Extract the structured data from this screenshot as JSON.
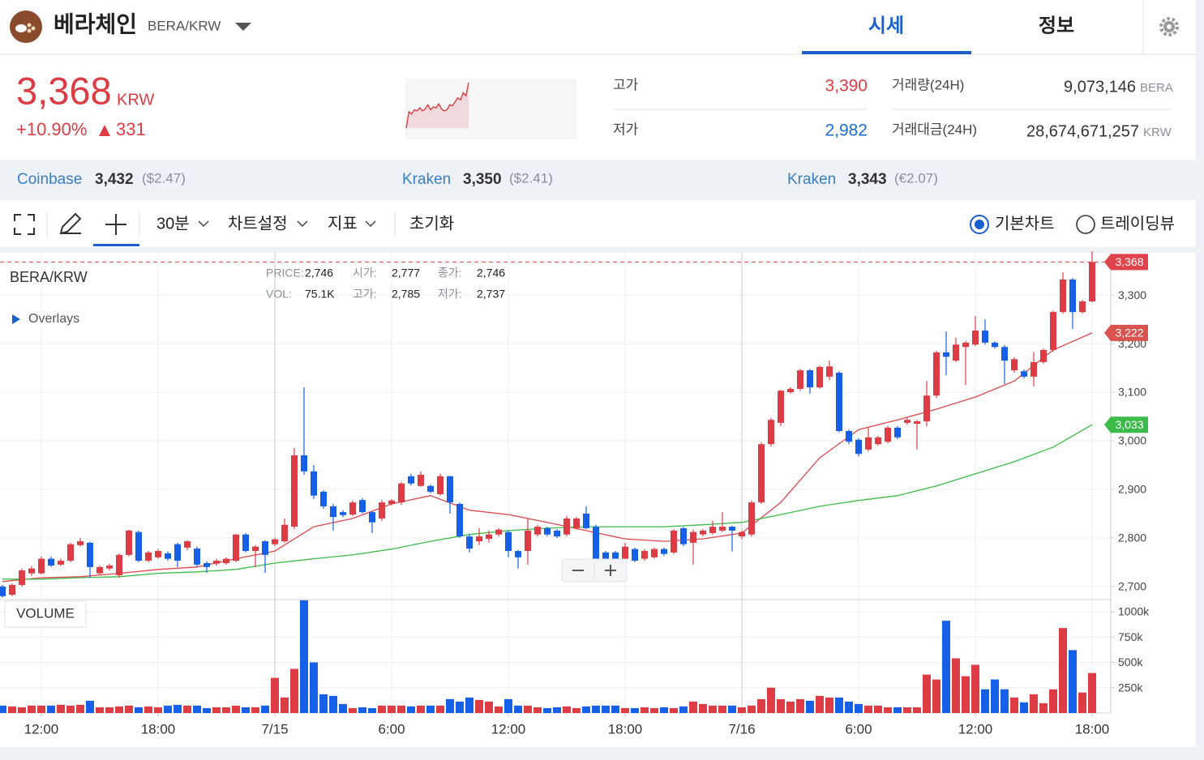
{
  "header": {
    "name": "베라체인",
    "pair": "BERA/KRW",
    "tabs": [
      "시세",
      "정보"
    ]
  },
  "ticker": {
    "price": "3,368",
    "currency": "KRW",
    "change_rate": "+10.90%",
    "change": "331",
    "sparkline": {
      "color": "#dd3c44",
      "values": [
        2700,
        2860,
        2840,
        2880,
        2870,
        2900,
        2870,
        2890,
        2930,
        2880,
        2910,
        2900,
        2940,
        2890,
        2870,
        2880,
        2930,
        2920,
        2960,
        3000,
        2980,
        3050,
        3020,
        3150
      ]
    }
  },
  "stats": [
    {
      "label": "고가",
      "value": "3,390"
    },
    {
      "label": "저가",
      "value": "2,982"
    },
    {
      "label": "거래량(24H)",
      "value": "9,073,146",
      "unit": "BERA"
    },
    {
      "label": "거래대금(24H)",
      "value": "28,674,671,257",
      "unit": "KRW"
    }
  ],
  "exchanges": [
    {
      "name": "Coinbase",
      "price": "3,432",
      "quote": "($2.47)"
    },
    {
      "name": "Kraken",
      "price": "3,350",
      "quote": "($2.41)"
    },
    {
      "name": "Kraken",
      "price": "3,343",
      "quote": "(€2.07)"
    }
  ],
  "toolbar": {
    "interval": "30분",
    "settings": "차트설정",
    "indicators": "지표",
    "reset": "초기화",
    "modes": [
      "기본차트",
      "트레이딩뷰"
    ]
  },
  "chart_data": {
    "type": "candlestick",
    "title": "BERA/KRW",
    "info": [
      [
        "PRICE:",
        "2,746"
      ],
      [
        "시가:",
        "2,777"
      ],
      [
        "종가:",
        "2,746"
      ],
      [
        "VOL:",
        "75.1K"
      ],
      [
        "고가:",
        "2,785"
      ],
      [
        "저가:",
        "2,737"
      ]
    ],
    "overlays_label": "Overlays",
    "volume_label": "VOLUME",
    "up_color": "#dd3c44",
    "down_color": "#1560e6",
    "grid": true,
    "x": [
      "7/14 10:00",
      "7/14 10:30",
      "7/14 11:00",
      "7/14 11:30",
      "7/14 12:00",
      "7/14 12:30",
      "7/14 13:00",
      "7/14 13:30",
      "7/14 14:00",
      "7/14 14:30",
      "7/14 15:00",
      "7/14 15:30",
      "7/14 16:00",
      "7/14 16:30",
      "7/14 17:00",
      "7/14 17:30",
      "7/14 18:00",
      "7/14 18:30",
      "7/14 19:00",
      "7/14 19:30",
      "7/14 20:00",
      "7/14 20:30",
      "7/14 21:00",
      "7/14 21:30",
      "7/14 22:00",
      "7/14 22:30",
      "7/14 23:00",
      "7/14 23:30",
      "7/15 0:00",
      "7/15 0:30",
      "7/15 1:00",
      "7/15 1:30",
      "7/15 2:00",
      "7/15 2:30",
      "7/15 3:00",
      "7/15 3:30",
      "7/15 4:00",
      "7/15 4:30",
      "7/15 5:00",
      "7/15 5:30",
      "7/15 6:00",
      "7/15 6:30",
      "7/15 7:00",
      "7/15 7:30",
      "7/15 8:00",
      "7/15 8:30",
      "7/15 9:00",
      "7/15 9:30",
      "7/15 10:00",
      "7/15 10:30",
      "7/15 11:00",
      "7/15 11:30",
      "7/15 12:00",
      "7/15 12:30",
      "7/15 13:00",
      "7/15 13:30",
      "7/15 14:00",
      "7/15 14:30",
      "7/15 15:00",
      "7/15 15:30",
      "7/15 16:00",
      "7/15 16:30",
      "7/15 17:00",
      "7/15 17:30",
      "7/15 18:00",
      "7/15 18:30",
      "7/15 19:00",
      "7/15 19:30",
      "7/15 20:00",
      "7/15 20:30",
      "7/15 21:00",
      "7/15 21:30",
      "7/15 22:00",
      "7/15 22:30",
      "7/15 23:00",
      "7/15 23:30",
      "7/16 0:00",
      "7/16 0:30",
      "7/16 1:00",
      "7/16 1:30",
      "7/16 2:00",
      "7/16 2:30",
      "7/16 3:00",
      "7/16 3:30",
      "7/16 4:00",
      "7/16 4:30",
      "7/16 5:00",
      "7/16 5:30",
      "7/16 6:00",
      "7/16 6:30",
      "7/16 7:00",
      "7/16 7:30",
      "7/16 8:00",
      "7/16 8:30",
      "7/16 9:00",
      "7/16 9:30",
      "7/16 10:00",
      "7/16 10:30",
      "7/16 11:00",
      "7/16 11:30",
      "7/16 12:00",
      "7/16 12:30",
      "7/16 13:00",
      "7/16 13:30",
      "7/16 14:00",
      "7/16 14:30",
      "7/16 15:00",
      "7/16 15:30",
      "7/16 16:00",
      "7/16 16:30",
      "7/16 17:00",
      "7/16 17:30",
      "7/16 18:00"
    ],
    "open": [
      2700,
      2683,
      2703,
      2727,
      2727,
      2757,
      2745,
      2753,
      2785,
      2790,
      2727,
      2737,
      2723,
      2765,
      2812,
      2753,
      2760,
      2768,
      2787,
      2780,
      2778,
      2748,
      2747,
      2748,
      2753,
      2807,
      2773,
      2793,
      2787,
      2793,
      2823,
      2970,
      2937,
      2895,
      2865,
      2853,
      2848,
      2878,
      2853,
      2840,
      2870,
      2873,
      2927,
      2907,
      2907,
      2890,
      2927,
      2870,
      2803,
      2793,
      2798,
      2807,
      2812,
      2773,
      2773,
      2807,
      2820,
      2815,
      2807,
      2820,
      2850,
      2823,
      2770,
      2770,
      2757,
      2777,
      2757,
      2760,
      2777,
      2770,
      2820,
      2790,
      2807,
      2810,
      2815,
      2823,
      2803,
      2807,
      2873,
      2993,
      3037,
      3100,
      3107,
      3145,
      3110,
      3132,
      3140,
      3020,
      3002,
      2982,
      2993,
      2998,
      3027,
      3037,
      3035,
      3040,
      3093,
      3182,
      3165,
      3193,
      3198,
      3227,
      3202,
      3193,
      3145,
      3143,
      3132,
      3162,
      3187,
      3265,
      3332,
      3265,
      3287
    ],
    "high": [
      2703,
      2706,
      2737,
      2742,
      2762,
      2762,
      2757,
      2790,
      2800,
      2792,
      2743,
      2747,
      2768,
      2817,
      2815,
      2773,
      2777,
      2772,
      2790,
      2795,
      2782,
      2752,
      2757,
      2760,
      2808,
      2810,
      2785,
      2795,
      2800,
      2840,
      2985,
      3110,
      2950,
      2898,
      2870,
      2857,
      2877,
      2882,
      2855,
      2878,
      2880,
      2915,
      2932,
      2937,
      2910,
      2932,
      2928,
      2873,
      2808,
      2820,
      2815,
      2820,
      2815,
      2775,
      2840,
      2827,
      2823,
      2818,
      2845,
      2843,
      2865,
      2827,
      2773,
      2773,
      2790,
      2780,
      2777,
      2780,
      2780,
      2818,
      2823,
      2817,
      2818,
      2835,
      2853,
      2825,
      2815,
      2877,
      2997,
      3047,
      3105,
      3110,
      3148,
      3148,
      3155,
      3165,
      3143,
      3023,
      3005,
      3028,
      3010,
      3030,
      3030,
      3047,
      3043,
      3123,
      3185,
      3225,
      3212,
      3205,
      3257,
      3250,
      3205,
      3197,
      3172,
      3147,
      3183,
      3190,
      3268,
      3347,
      3335,
      3290,
      3390
    ],
    "low": [
      2677,
      2680,
      2700,
      2722,
      2725,
      2740,
      2742,
      2750,
      2782,
      2718,
      2724,
      2733,
      2718,
      2762,
      2750,
      2750,
      2757,
      2753,
      2740,
      2775,
      2740,
      2728,
      2743,
      2745,
      2750,
      2770,
      2740,
      2728,
      2783,
      2790,
      2818,
      2930,
      2880,
      2860,
      2815,
      2843,
      2845,
      2850,
      2810,
      2835,
      2867,
      2868,
      2908,
      2905,
      2892,
      2887,
      2850,
      2800,
      2770,
      2785,
      2790,
      2803,
      2760,
      2737,
      2745,
      2803,
      2803,
      2800,
      2803,
      2817,
      2818,
      2753,
      2753,
      2750,
      2753,
      2750,
      2753,
      2757,
      2763,
      2767,
      2783,
      2745,
      2803,
      2807,
      2812,
      2772,
      2798,
      2803,
      2870,
      2988,
      3030,
      3097,
      3103,
      3097,
      3107,
      3125,
      3017,
      2993,
      2968,
      2978,
      2990,
      2995,
      3003,
      3033,
      2982,
      3030,
      3088,
      3135,
      3162,
      3115,
      3195,
      3198,
      3190,
      3117,
      3140,
      3128,
      3112,
      3158,
      3183,
      3262,
      3230,
      3262,
      3285
    ],
    "close": [
      2680,
      2703,
      2733,
      2737,
      2757,
      2743,
      2753,
      2787,
      2793,
      2740,
      2740,
      2743,
      2765,
      2815,
      2753,
      2770,
      2773,
      2757,
      2753,
      2793,
      2745,
      2740,
      2753,
      2757,
      2807,
      2773,
      2782,
      2765,
      2797,
      2827,
      2970,
      2937,
      2887,
      2865,
      2843,
      2847,
      2873,
      2853,
      2832,
      2873,
      2877,
      2912,
      2912,
      2930,
      2895,
      2927,
      2873,
      2803,
      2778,
      2803,
      2807,
      2817,
      2773,
      2760,
      2815,
      2823,
      2807,
      2803,
      2840,
      2840,
      2820,
      2757,
      2757,
      2753,
      2782,
      2753,
      2773,
      2777,
      2767,
      2815,
      2787,
      2812,
      2815,
      2823,
      2823,
      2815,
      2812,
      2873,
      2993,
      3043,
      3103,
      3107,
      3145,
      3110,
      3152,
      3153,
      3020,
      2998,
      2973,
      3007,
      3007,
      3027,
      3007,
      3043,
      3040,
      3093,
      3182,
      3173,
      3198,
      3202,
      3227,
      3202,
      3193,
      3165,
      3168,
      3132,
      3162,
      3187,
      3265,
      3332,
      3265,
      3287,
      3368
    ],
    "volume": [
      73000,
      65000,
      56000,
      73000,
      73000,
      73000,
      81000,
      73000,
      81000,
      121000,
      56000,
      56000,
      65000,
      73000,
      56000,
      65000,
      56000,
      73000,
      81000,
      73000,
      73000,
      48000,
      56000,
      56000,
      73000,
      56000,
      56000,
      73000,
      347000,
      153000,
      436000,
      1113000,
      500000,
      185000,
      169000,
      89000,
      48000,
      56000,
      48000,
      73000,
      73000,
      73000,
      65000,
      73000,
      73000,
      73000,
      137000,
      113000,
      153000,
      129000,
      113000,
      65000,
      137000,
      73000,
      73000,
      56000,
      48000,
      56000,
      65000,
      48000,
      65000,
      73000,
      73000,
      73000,
      48000,
      48000,
      56000,
      48000,
      56000,
      48000,
      65000,
      113000,
      89000,
      73000,
      73000,
      73000,
      56000,
      73000,
      137000,
      250000,
      137000,
      113000,
      137000,
      121000,
      169000,
      153000,
      153000,
      113000,
      89000,
      73000,
      73000,
      56000,
      56000,
      56000,
      56000,
      379000,
      331000,
      911000,
      540000,
      363000,
      476000,
      234000,
      331000,
      234000,
      153000,
      105000,
      185000,
      97000,
      234000,
      839000,
      621000,
      202000,
      395000
    ],
    "moving_averages": [
      {
        "color": "#e0474e",
        "x": [
          "7/14 10:00",
          "7/14 12:00",
          "7/14 14:00",
          "7/14 16:00",
          "7/14 18:00",
          "7/14 20:00",
          "7/14 22:00",
          "7/15 0:00",
          "7/15 2:00",
          "7/15 4:00",
          "7/15 6:00",
          "7/15 8:00",
          "7/15 10:00",
          "7/15 12:00",
          "7/15 14:00",
          "7/15 16:00",
          "7/15 18:00",
          "7/15 20:00",
          "7/15 22:00",
          "7/16 0:00",
          "7/16 2:00",
          "7/16 4:00",
          "7/16 6:00",
          "7/16 8:00",
          "7/16 10:00",
          "7/16 12:00",
          "7/16 14:00",
          "7/16 16:00",
          "7/16 18:00"
        ],
        "values": [
          2710,
          2718,
          2720,
          2727,
          2735,
          2740,
          2757,
          2773,
          2823,
          2840,
          2870,
          2887,
          2857,
          2848,
          2832,
          2815,
          2798,
          2793,
          2798,
          2810,
          2873,
          2965,
          3023,
          3043,
          3065,
          3090,
          3123,
          3187,
          3222
        ]
      },
      {
        "color": "#3dbb4a",
        "x": [
          "7/14 10:00",
          "7/14 12:00",
          "7/14 14:00",
          "7/14 16:00",
          "7/14 18:00",
          "7/14 20:00",
          "7/14 22:00",
          "7/15 0:00",
          "7/15 2:00",
          "7/15 4:00",
          "7/15 6:00",
          "7/15 8:00",
          "7/15 10:00",
          "7/15 12:00",
          "7/15 14:00",
          "7/15 16:00",
          "7/15 18:00",
          "7/15 20:00",
          "7/15 22:00",
          "7/16 0:00",
          "7/16 2:00",
          "7/16 4:00",
          "7/16 6:00",
          "7/16 8:00",
          "7/16 10:00",
          "7/16 12:00",
          "7/16 14:00",
          "7/16 16:00",
          "7/16 18:00"
        ],
        "values": [
          2715,
          2715,
          2718,
          2720,
          2727,
          2730,
          2735,
          2748,
          2757,
          2765,
          2777,
          2793,
          2807,
          2815,
          2820,
          2823,
          2823,
          2823,
          2827,
          2832,
          2848,
          2865,
          2877,
          2887,
          2907,
          2932,
          2957,
          2987,
          3033
        ]
      }
    ],
    "price_tags": [
      {
        "value": 3368,
        "label": "3,368",
        "color": "#e0434b"
      },
      {
        "value": 3222,
        "label": "3,222",
        "color": "#d9534f"
      },
      {
        "value": 3033,
        "label": "3,033",
        "color": "#3dbb4a"
      }
    ],
    "ylim": [
      2673,
      3387
    ],
    "yticks": [
      {
        "value": 2700,
        "label": "2,700"
      },
      {
        "value": 2800,
        "label": "2,800"
      },
      {
        "value": 2900,
        "label": "2,900"
      },
      {
        "value": 3000,
        "label": "3,000"
      },
      {
        "value": 3100,
        "label": "3,100"
      },
      {
        "value": 3200,
        "label": "3,200"
      },
      {
        "value": 3300,
        "label": "3,300"
      }
    ],
    "volume_ylim": [
      0,
      1120000
    ],
    "volume_ticks": [
      {
        "value": 250000,
        "label": "250k"
      },
      {
        "value": 500000,
        "label": "500k"
      },
      {
        "value": 750000,
        "label": "750k"
      },
      {
        "value": 1000000,
        "label": "1000k"
      }
    ],
    "xticks": [
      {
        "value": "7/14 12:00",
        "label": "12:00"
      },
      {
        "value": "7/14 18:00",
        "label": "18:00"
      },
      {
        "value": "7/15 0:00",
        "label": "7/15"
      },
      {
        "value": "7/15 6:00",
        "label": "6:00"
      },
      {
        "value": "7/15 12:00",
        "label": "12:00"
      },
      {
        "value": "7/15 18:00",
        "label": "18:00"
      },
      {
        "value": "7/16 0:00",
        "label": "7/16"
      },
      {
        "value": "7/16 6:00",
        "label": "6:00"
      },
      {
        "value": "7/16 12:00",
        "label": "12:00"
      },
      {
        "value": "7/16 18:00",
        "label": "18:00"
      }
    ]
  }
}
